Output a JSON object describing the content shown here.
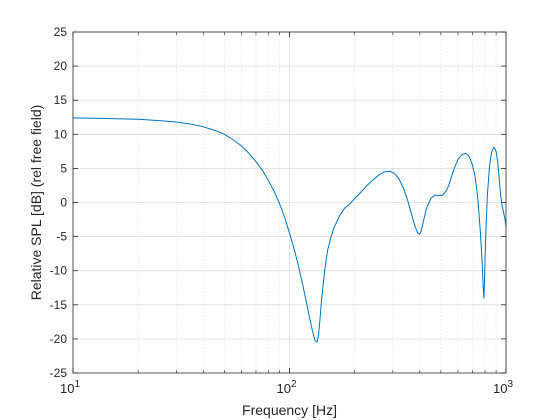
{
  "chart_data": {
    "type": "line",
    "title": "",
    "xlabel": "Frequency [Hz]",
    "ylabel": "Relative SPL [dB] (rel free field)",
    "xscale": "log",
    "xlim": [
      10,
      1000
    ],
    "ylim": [
      -25,
      25
    ],
    "grid": true,
    "minor_grid_x": true,
    "x_ticks": [
      {
        "value": 10,
        "base": "10",
        "exp": "1"
      },
      {
        "value": 100,
        "base": "10",
        "exp": "2"
      },
      {
        "value": 1000,
        "base": "10",
        "exp": "3"
      }
    ],
    "y_ticks": [
      {
        "value": -25,
        "label": "-25"
      },
      {
        "value": -20,
        "label": "-20"
      },
      {
        "value": -15,
        "label": "-15"
      },
      {
        "value": -10,
        "label": "-10"
      },
      {
        "value": -5,
        "label": "-5"
      },
      {
        "value": 0,
        "label": "0"
      },
      {
        "value": 5,
        "label": "5"
      },
      {
        "value": 10,
        "label": "10"
      },
      {
        "value": 15,
        "label": "15"
      },
      {
        "value": 20,
        "label": "20"
      },
      {
        "value": 25,
        "label": "25"
      }
    ],
    "series": [
      {
        "color": "#0072BD",
        "x": [
          10,
          15,
          20,
          25,
          30,
          35,
          40,
          45,
          50,
          55,
          60,
          65,
          70,
          75,
          80,
          85,
          90,
          95,
          100,
          105,
          110,
          115,
          120,
          125,
          128,
          131,
          134,
          136,
          138,
          140,
          143,
          146,
          150,
          155,
          160,
          170,
          180,
          190,
          200,
          215,
          230,
          245,
          260,
          275,
          290,
          305,
          320,
          335,
          350,
          365,
          380,
          390,
          398,
          405,
          415,
          430,
          450,
          470,
          490,
          510,
          530,
          545,
          560,
          580,
          600,
          625,
          650,
          675,
          700,
          720,
          740,
          760,
          775,
          785,
          790,
          795,
          800,
          808,
          820,
          840,
          860,
          880,
          900,
          915,
          930,
          945,
          960,
          975,
          990,
          1000
        ],
        "y": [
          12.4,
          12.3,
          12.2,
          12.0,
          11.8,
          11.5,
          11.1,
          10.6,
          10.0,
          9.2,
          8.3,
          7.2,
          6.0,
          4.7,
          3.2,
          1.6,
          -0.2,
          -2.2,
          -4.5,
          -6.8,
          -9.3,
          -12.0,
          -14.8,
          -17.5,
          -19.0,
          -20.2,
          -20.5,
          -19.5,
          -17.5,
          -15.0,
          -12.0,
          -9.5,
          -7.0,
          -5.2,
          -3.8,
          -2.0,
          -0.8,
          -0.2,
          0.6,
          1.6,
          2.6,
          3.4,
          4.1,
          4.5,
          4.6,
          4.3,
          3.5,
          2.2,
          0.5,
          -1.5,
          -3.5,
          -4.4,
          -4.7,
          -4.3,
          -2.8,
          -0.8,
          0.6,
          1.1,
          1.0,
          1.1,
          1.7,
          2.6,
          3.8,
          5.2,
          6.3,
          7.0,
          7.2,
          6.8,
          5.5,
          3.8,
          0.8,
          -4.0,
          -8.5,
          -12.5,
          -14.0,
          -12.0,
          -8.5,
          -4.0,
          1.0,
          5.5,
          7.5,
          8.1,
          7.5,
          6.0,
          3.5,
          1.0,
          -0.5,
          -1.5,
          -2.5,
          -3.5
        ]
      }
    ]
  }
}
